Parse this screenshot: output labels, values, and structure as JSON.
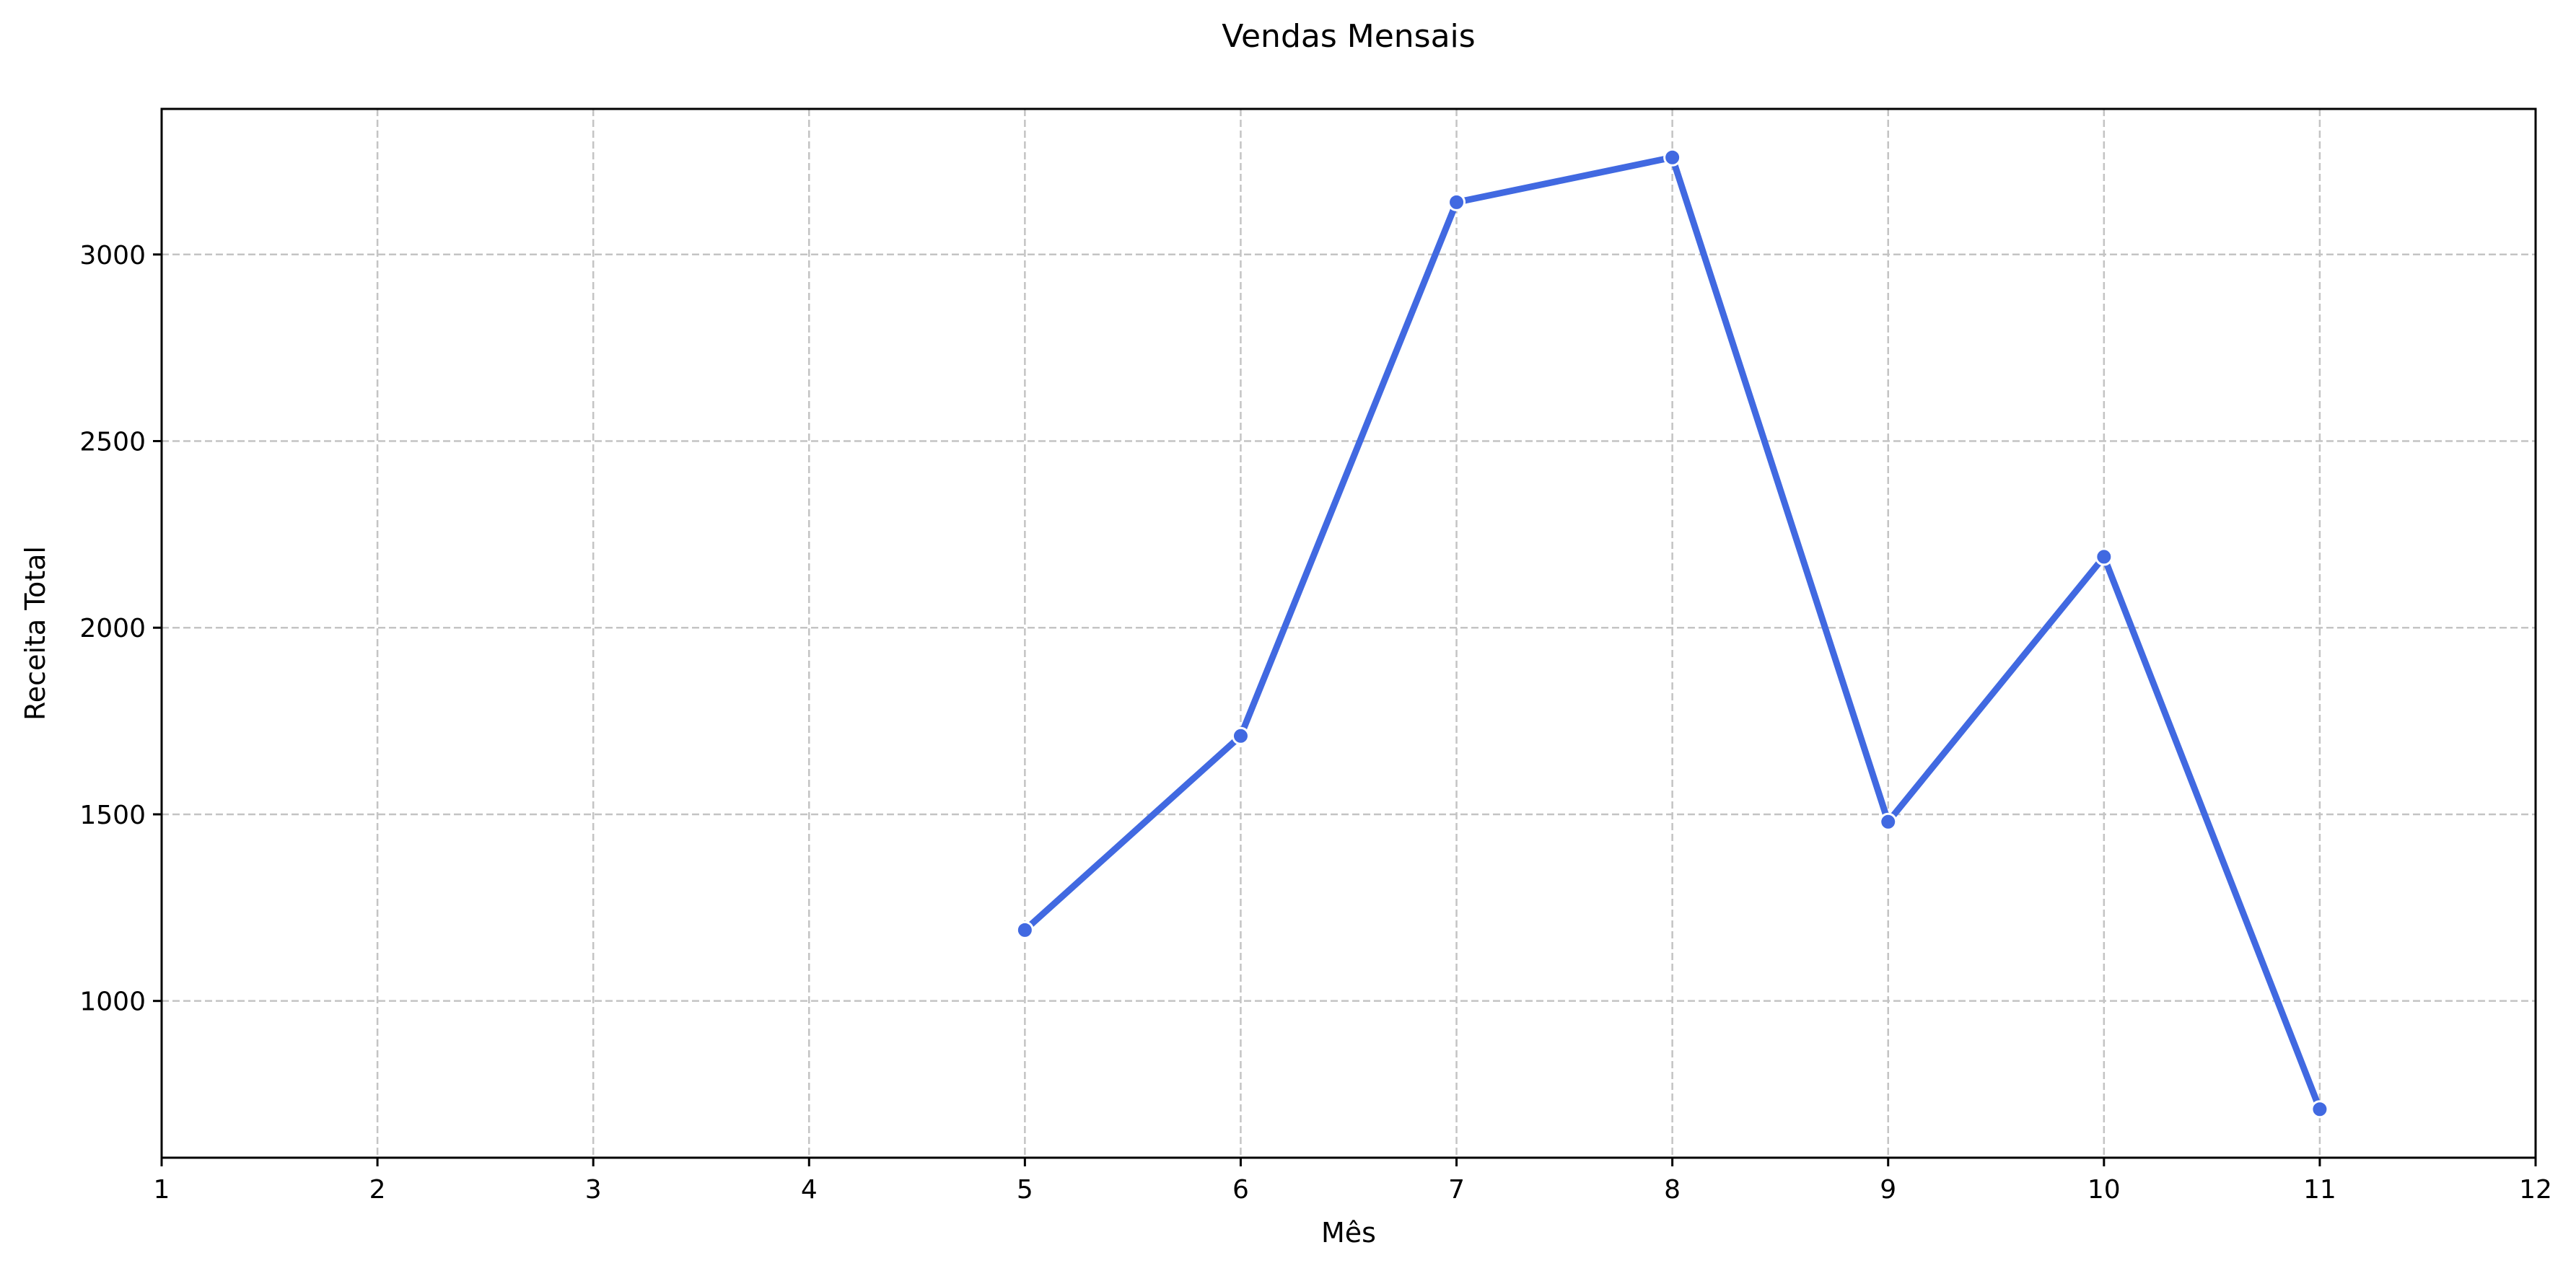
{
  "chart_data": {
    "type": "line",
    "title": "Vendas Mensais",
    "xlabel": "Mês",
    "ylabel": "Receita Total",
    "xlim": [
      1,
      12
    ],
    "ylim": [
      580,
      3390
    ],
    "xticks": [
      "1",
      "2",
      "3",
      "4",
      "5",
      "6",
      "7",
      "8",
      "9",
      "10",
      "11",
      "12"
    ],
    "yticks": [
      "1000",
      "1500",
      "2000",
      "2500",
      "3000"
    ],
    "grid": true,
    "series": [
      {
        "x": [
          5,
          6,
          7,
          8,
          9,
          10,
          11
        ],
        "values": [
          1190,
          1710,
          3140,
          3260,
          1480,
          2190,
          710
        ],
        "color": "#4169e1",
        "marker": "circle"
      }
    ]
  }
}
